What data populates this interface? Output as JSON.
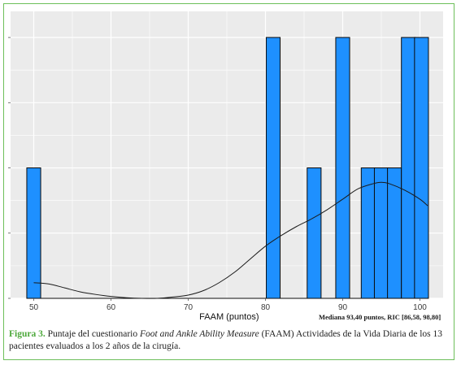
{
  "chart_data": {
    "type": "bar",
    "subtype": "histogram",
    "xlabel": "FAAM (puntos)",
    "ylabel": "",
    "xlim": [
      47,
      103
    ],
    "ylim": [
      0,
      2.2
    ],
    "x_ticks": [
      50,
      60,
      70,
      80,
      90,
      100
    ],
    "y_tick_values": [
      0,
      0.5,
      1,
      1.5,
      2
    ],
    "bin_width": 1.8,
    "bins": [
      {
        "center": 50.0,
        "count": 1
      },
      {
        "center": 81.0,
        "count": 2
      },
      {
        "center": 86.3,
        "count": 1
      },
      {
        "center": 90.0,
        "count": 2
      },
      {
        "center": 93.3,
        "count": 1
      },
      {
        "center": 95.0,
        "count": 1
      },
      {
        "center": 96.7,
        "count": 1
      },
      {
        "center": 98.5,
        "count": 2
      },
      {
        "center": 100.2,
        "count": 2
      }
    ],
    "density_curve": [
      [
        50,
        0.12
      ],
      [
        52,
        0.11
      ],
      [
        54,
        0.08
      ],
      [
        56,
        0.05
      ],
      [
        58,
        0.03
      ],
      [
        60,
        0.015
      ],
      [
        62,
        0.005
      ],
      [
        64,
        0.0
      ],
      [
        66,
        0.0
      ],
      [
        68,
        0.01
      ],
      [
        70,
        0.025
      ],
      [
        72,
        0.06
      ],
      [
        74,
        0.12
      ],
      [
        76,
        0.2
      ],
      [
        78,
        0.3
      ],
      [
        80,
        0.4
      ],
      [
        82,
        0.48
      ],
      [
        84,
        0.55
      ],
      [
        86,
        0.61
      ],
      [
        88,
        0.68
      ],
      [
        90,
        0.76
      ],
      [
        92,
        0.84
      ],
      [
        94,
        0.88
      ],
      [
        95,
        0.89
      ],
      [
        96,
        0.88
      ],
      [
        98,
        0.83
      ],
      [
        100,
        0.76
      ],
      [
        101,
        0.71
      ]
    ],
    "grid": true,
    "colors": {
      "bar_fill": "#1e90ff",
      "bar_stroke": "#0a0a0a",
      "panel_bg": "#ebebeb",
      "grid": "#ffffff",
      "curve": "#1a1a1a"
    }
  },
  "annotation": {
    "median_text": "Mediana 93,40 puntos, RIC [86,58, 98,80]"
  },
  "caption": {
    "label": "Figura 3.",
    "text_before": "Puntaje del cuestionario",
    "italic": "Foot and Ankle Ability Measure",
    "text_after": "(FAAM) Actividades de la Vida Diaria de los 13 pacientes evaluados a los 2 años de la cirugía."
  }
}
